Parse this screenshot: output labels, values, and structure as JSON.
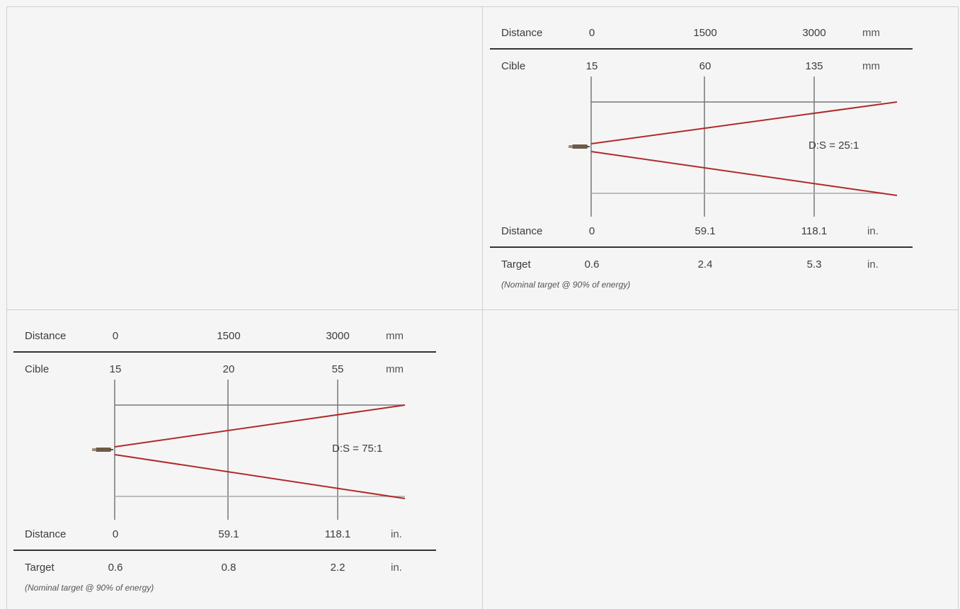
{
  "diagrams": [
    {
      "id": "ds25",
      "distance_label": "Distance",
      "target_mm_label": "Cible",
      "target_in_label": "Target",
      "distance_mm": [
        "0",
        "1500",
        "3000"
      ],
      "distance_mm_unit": "mm",
      "target_mm": [
        "15",
        "60",
        "135"
      ],
      "target_mm_unit": "mm",
      "ratio": "D:S = 25:1",
      "distance_in": [
        "0",
        "59.1",
        "118.1"
      ],
      "distance_in_unit": "in.",
      "target_in": [
        "0.6",
        "2.4",
        "5.3"
      ],
      "target_in_unit": "in.",
      "note": "(Nominal target @ 90% of energy)"
    },
    {
      "id": "ds75",
      "distance_label": "Distance",
      "target_mm_label": "Cible",
      "target_in_label": "Target",
      "distance_mm": [
        "0",
        "1500",
        "3000"
      ],
      "distance_mm_unit": "mm",
      "target_mm": [
        "15",
        "20",
        "55"
      ],
      "target_mm_unit": "mm",
      "ratio": "D:S = 75:1",
      "distance_in": [
        "0",
        "59.1",
        "118.1"
      ],
      "distance_in_unit": "in.",
      "target_in": [
        "0.6",
        "0.8",
        "2.2"
      ],
      "target_in_unit": "in.",
      "note": "(Nominal target @ 90% of energy)"
    }
  ],
  "colors": {
    "beam": "#b02a2a",
    "frame_line": "#777777",
    "rule": "#333333",
    "cell_border": "#cfcfcf",
    "background": "#f5f5f5"
  }
}
